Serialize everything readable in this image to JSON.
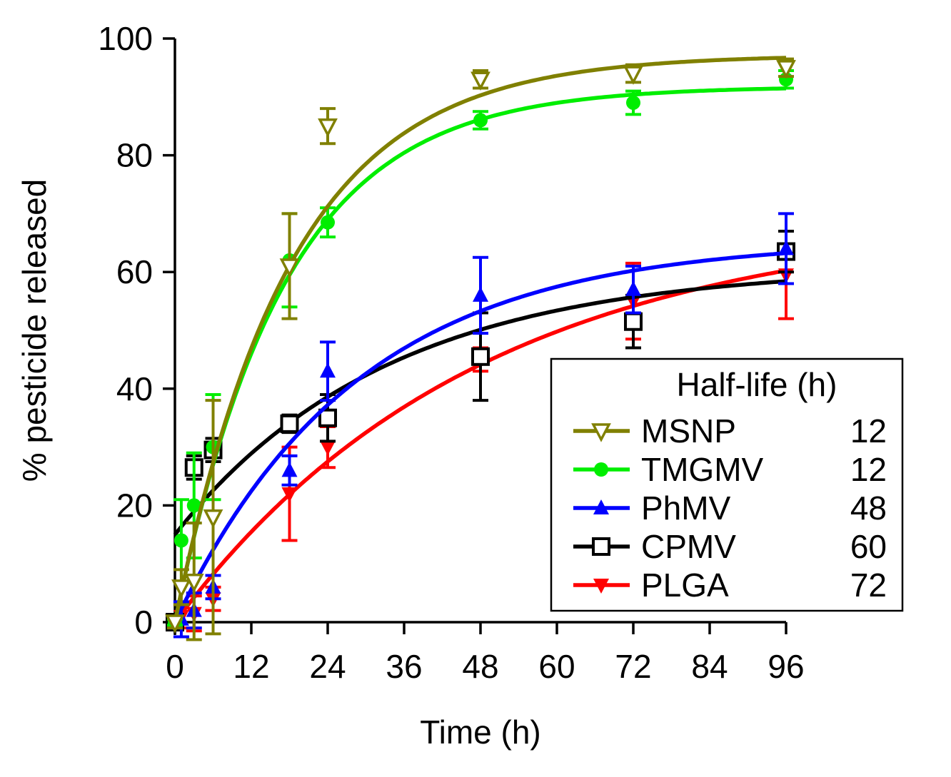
{
  "chart_data": {
    "type": "scatter",
    "xlabel": "Time (h)",
    "ylabel": "% pesticide released",
    "xlim": [
      0,
      96
    ],
    "ylim": [
      0,
      100
    ],
    "xticks": [
      0,
      12,
      24,
      36,
      48,
      60,
      72,
      84,
      96
    ],
    "yticks": [
      0,
      20,
      40,
      60,
      80,
      100
    ],
    "grid": false,
    "legend": {
      "placement": "bottom-right",
      "header": "Half-life (h)"
    },
    "series": [
      {
        "name": "MSNP",
        "half_life": "12",
        "color": "#808000",
        "marker": "triangle-down-open",
        "x": [
          0,
          1,
          3,
          6,
          18,
          24,
          48,
          72,
          96
        ],
        "y": [
          0,
          6,
          7,
          18,
          61,
          85,
          93,
          94,
          95
        ],
        "err": [
          1,
          3,
          10,
          20,
          9,
          3,
          1.5,
          1.5,
          1.5
        ],
        "fit": {
          "plateau": 97.2,
          "k": 0.055
        }
      },
      {
        "name": "TMGMV",
        "half_life": "12",
        "color": "#00ee00",
        "marker": "circle",
        "x": [
          0,
          1,
          3,
          6,
          18,
          24,
          48,
          72,
          96
        ],
        "y": [
          0,
          14,
          20,
          30,
          62,
          68.5,
          86,
          89,
          93
        ],
        "err": [
          0.5,
          7,
          9,
          9,
          8,
          2.5,
          1.5,
          2,
          1.5
        ],
        "fit": {
          "plateau": 91.8,
          "k": 0.058
        }
      },
      {
        "name": "PhMV",
        "half_life": "48",
        "color": "#0000ff",
        "marker": "triangle",
        "x": [
          0,
          1,
          3,
          6,
          18,
          24,
          48,
          72,
          96
        ],
        "y": [
          0,
          0.5,
          2,
          6,
          26,
          43,
          56,
          57,
          64
        ],
        "err": [
          1,
          3,
          3,
          2,
          2.5,
          5,
          6.5,
          4,
          6
        ],
        "fit": {
          "plateau": 65.5,
          "k": 0.035
        }
      },
      {
        "name": "CPMV",
        "half_life": "60",
        "color": "#000000",
        "marker": "square-open",
        "x": [
          0,
          3,
          6,
          18,
          24,
          48,
          72,
          96
        ],
        "y": [
          0,
          26.5,
          29.5,
          34,
          35,
          45.5,
          51.5,
          63.5
        ],
        "err": [
          0.5,
          2,
          2,
          1.5,
          4,
          7.5,
          4.5,
          3.5
        ],
        "fit": {
          "a0": 15,
          "plateau": 61,
          "k": 0.03
        }
      },
      {
        "name": "PLGA",
        "half_life": "72",
        "color": "#ff0000",
        "marker": "triangle-down",
        "x": [
          0,
          1,
          3,
          6,
          18,
          24,
          48,
          72,
          96
        ],
        "y": [
          0,
          1,
          1.5,
          4,
          22,
          30,
          45,
          55,
          59.5
        ],
        "err": [
          0.5,
          2,
          3,
          2,
          8,
          3.5,
          2,
          6.5,
          7.5
        ],
        "fit": {
          "plateau": 69.5,
          "k": 0.021
        }
      }
    ]
  }
}
